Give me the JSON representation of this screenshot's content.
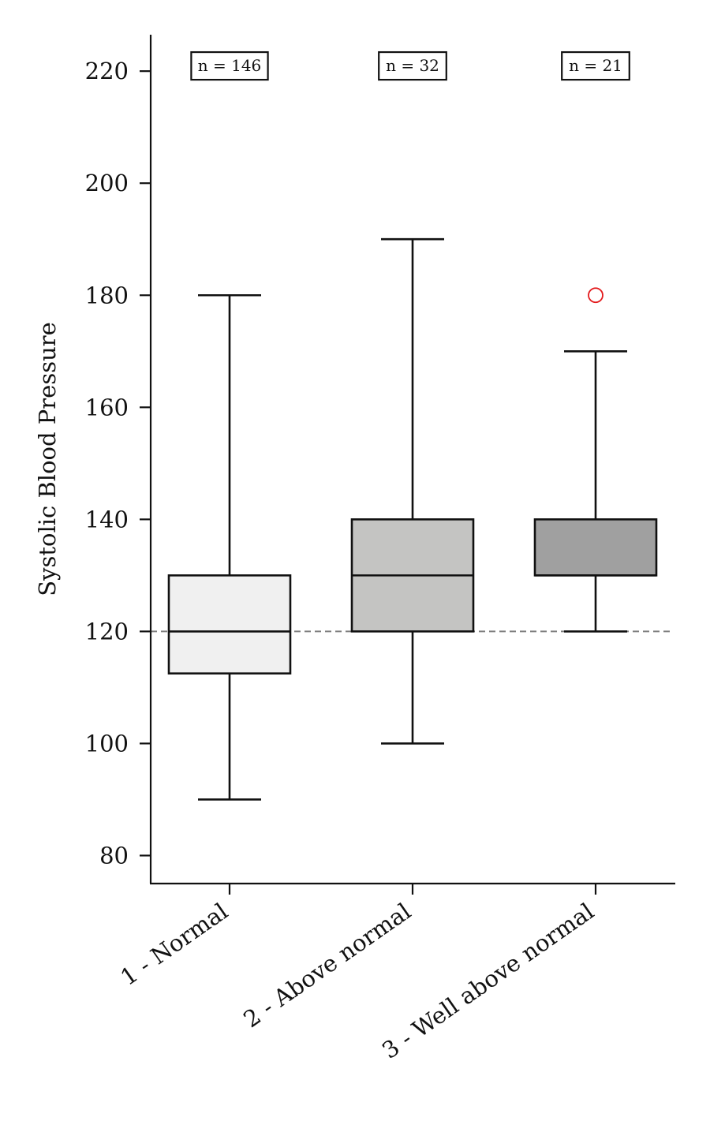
{
  "chart_data": {
    "type": "box",
    "ylabel": "Systolic Blood Pressure",
    "xlabel": "",
    "ylim": [
      75,
      226.5
    ],
    "yticks": [
      80,
      100,
      120,
      140,
      160,
      180,
      200,
      220
    ],
    "reference_line": {
      "y": 120,
      "style": "dashed",
      "color": "#808080"
    },
    "categories": [
      "1 - Normal",
      "2 - Above normal",
      "3 - Well above normal"
    ],
    "boxes": [
      {
        "category": "1 - Normal",
        "n_label": "n = 146",
        "whisker_low": 90,
        "q1": 112.5,
        "median": 120,
        "q3": 130,
        "whisker_high": 180,
        "outliers": [],
        "color": "#f0f0f0"
      },
      {
        "category": "2 - Above normal",
        "n_label": "n = 32",
        "whisker_low": 100,
        "q1": 120,
        "median": 130,
        "q3": 140,
        "whisker_high": 190,
        "outliers": [],
        "color": "#c4c4c2"
      },
      {
        "category": "3 - Well above normal",
        "n_label": "n = 21",
        "whisker_low": 120,
        "q1": 130,
        "median": 130,
        "q3": 140,
        "whisker_high": 170,
        "outliers": [
          180
        ],
        "color": "#a0a0a0"
      }
    ],
    "outlier_color": "#e31a1c",
    "grid": false,
    "legend": "none"
  }
}
